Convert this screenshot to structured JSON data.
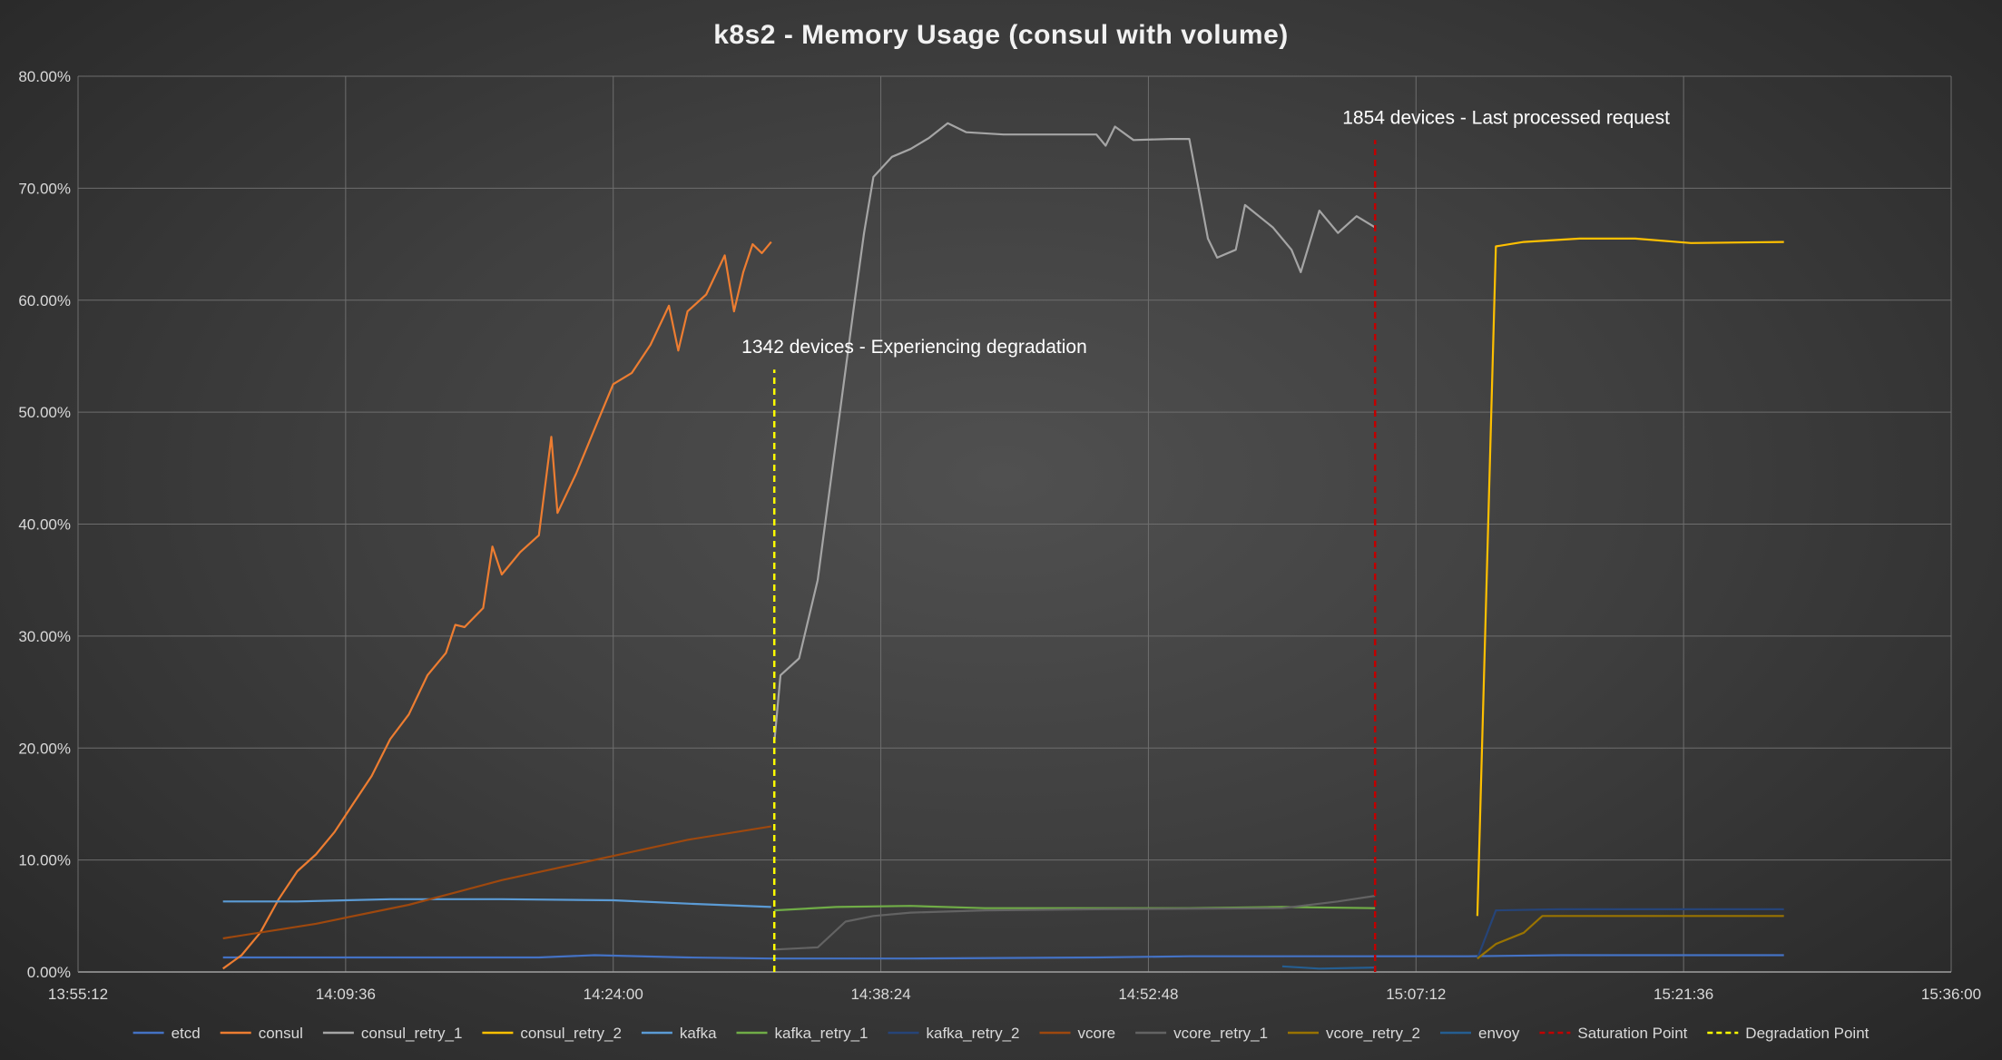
{
  "chart_data": {
    "type": "line",
    "title": "k8s2 - Memory Usage (consul with volume)",
    "xlabel": "",
    "ylabel": "",
    "x_ticks": [
      "13:55:12",
      "14:09:36",
      "14:24:00",
      "14:38:24",
      "14:52:48",
      "15:07:12",
      "15:21:36",
      "15:36:00"
    ],
    "xlim": [
      "13:55:12",
      "15:36:00"
    ],
    "y_ticks": [
      "0.00%",
      "10.00%",
      "20.00%",
      "30.00%",
      "40.00%",
      "50.00%",
      "60.00%",
      "70.00%",
      "80.00%"
    ],
    "ylim": [
      0,
      80
    ],
    "y_unit": "%",
    "grid": true,
    "legend_position": "bottom",
    "series": [
      {
        "name": "etcd",
        "color": "#4472c4",
        "dash": "solid",
        "points": [
          [
            "14:03:00",
            1.3
          ],
          [
            "14:12:00",
            1.3
          ],
          [
            "14:20:00",
            1.3
          ],
          [
            "14:23:00",
            1.5
          ],
          [
            "14:28:00",
            1.3
          ],
          [
            "14:32:30",
            1.2
          ],
          [
            "14:40:00",
            1.2
          ],
          [
            "14:50:00",
            1.3
          ],
          [
            "14:55:00",
            1.4
          ],
          [
            "15:04:00",
            1.4
          ],
          [
            "15:10:00",
            1.4
          ],
          [
            "15:15:00",
            1.5
          ],
          [
            "15:20:00",
            1.5
          ],
          [
            "15:27:00",
            1.5
          ]
        ]
      },
      {
        "name": "consul",
        "color": "#ed7d31",
        "dash": "solid",
        "points": [
          [
            "14:03:00",
            0.3
          ],
          [
            "14:04:00",
            1.5
          ],
          [
            "14:05:00",
            3.5
          ],
          [
            "14:06:00",
            6.5
          ],
          [
            "14:07:00",
            9.0
          ],
          [
            "14:08:00",
            10.5
          ],
          [
            "14:09:00",
            12.5
          ],
          [
            "14:10:00",
            15.0
          ],
          [
            "14:11:00",
            17.5
          ],
          [
            "14:12:00",
            20.8
          ],
          [
            "14:13:00",
            23.0
          ],
          [
            "14:14:00",
            26.5
          ],
          [
            "14:15:00",
            28.5
          ],
          [
            "14:15:30",
            31.0
          ],
          [
            "14:16:00",
            30.8
          ],
          [
            "14:17:00",
            32.5
          ],
          [
            "14:17:30",
            38.0
          ],
          [
            "14:18:00",
            35.5
          ],
          [
            "14:19:00",
            37.5
          ],
          [
            "14:20:00",
            39.0
          ],
          [
            "14:20:40",
            47.8
          ],
          [
            "14:21:00",
            41.0
          ],
          [
            "14:22:00",
            44.5
          ],
          [
            "14:23:00",
            48.5
          ],
          [
            "14:24:00",
            52.5
          ],
          [
            "14:25:00",
            53.5
          ],
          [
            "14:26:00",
            56.0
          ],
          [
            "14:27:00",
            59.5
          ],
          [
            "14:27:30",
            55.5
          ],
          [
            "14:28:00",
            59.0
          ],
          [
            "14:29:00",
            60.5
          ],
          [
            "14:30:00",
            64.0
          ],
          [
            "14:30:30",
            59.0
          ],
          [
            "14:31:00",
            62.5
          ],
          [
            "14:31:30",
            65.0
          ],
          [
            "14:32:00",
            64.2
          ],
          [
            "14:32:30",
            65.2
          ]
        ]
      },
      {
        "name": "consul_retry_1",
        "color": "#a5a5a5",
        "dash": "solid",
        "points": [
          [
            "14:32:40",
            20.5
          ],
          [
            "14:33:00",
            26.5
          ],
          [
            "14:34:00",
            28.0
          ],
          [
            "14:35:00",
            35.0
          ],
          [
            "14:36:00",
            47.5
          ],
          [
            "14:37:00",
            60.0
          ],
          [
            "14:37:30",
            66.0
          ],
          [
            "14:38:00",
            71.0
          ],
          [
            "14:39:00",
            72.8
          ],
          [
            "14:40:00",
            73.5
          ],
          [
            "14:41:00",
            74.5
          ],
          [
            "14:42:00",
            75.8
          ],
          [
            "14:43:00",
            75.0
          ],
          [
            "14:45:00",
            74.8
          ],
          [
            "14:48:00",
            74.8
          ],
          [
            "14:50:00",
            74.8
          ],
          [
            "14:50:30",
            73.8
          ],
          [
            "14:51:00",
            75.5
          ],
          [
            "14:52:00",
            74.3
          ],
          [
            "14:54:00",
            74.4
          ],
          [
            "14:55:00",
            74.4
          ],
          [
            "14:56:00",
            65.5
          ],
          [
            "14:56:30",
            63.8
          ],
          [
            "14:57:30",
            64.5
          ],
          [
            "14:58:00",
            68.5
          ],
          [
            "14:59:30",
            66.5
          ],
          [
            "15:00:30",
            64.5
          ],
          [
            "15:01:00",
            62.5
          ],
          [
            "15:02:00",
            68.0
          ],
          [
            "15:03:00",
            66.0
          ],
          [
            "15:04:00",
            67.5
          ],
          [
            "15:05:00",
            66.5
          ]
        ]
      },
      {
        "name": "consul_retry_2",
        "color": "#ffc000",
        "dash": "solid",
        "points": [
          [
            "15:10:30",
            5.0
          ],
          [
            "15:11:30",
            64.8
          ],
          [
            "15:13:00",
            65.2
          ],
          [
            "15:16:00",
            65.5
          ],
          [
            "15:19:00",
            65.5
          ],
          [
            "15:22:00",
            65.1
          ],
          [
            "15:27:00",
            65.2
          ]
        ]
      },
      {
        "name": "kafka",
        "color": "#5b9bd5",
        "dash": "solid",
        "points": [
          [
            "14:03:00",
            6.3
          ],
          [
            "14:07:00",
            6.3
          ],
          [
            "14:12:00",
            6.5
          ],
          [
            "14:18:00",
            6.5
          ],
          [
            "14:24:00",
            6.4
          ],
          [
            "14:28:00",
            6.1
          ],
          [
            "14:32:30",
            5.8
          ]
        ]
      },
      {
        "name": "kafka_retry_1",
        "color": "#70ad47",
        "dash": "solid",
        "points": [
          [
            "14:32:40",
            5.5
          ],
          [
            "14:36:00",
            5.8
          ],
          [
            "14:40:00",
            5.9
          ],
          [
            "14:44:00",
            5.7
          ],
          [
            "14:50:00",
            5.7
          ],
          [
            "14:55:00",
            5.7
          ],
          [
            "15:00:00",
            5.8
          ],
          [
            "15:05:00",
            5.7
          ]
        ]
      },
      {
        "name": "kafka_retry_2",
        "color": "#264478",
        "dash": "solid",
        "points": [
          [
            "15:10:30",
            1.2
          ],
          [
            "15:11:30",
            5.5
          ],
          [
            "15:15:00",
            5.6
          ],
          [
            "15:20:00",
            5.6
          ],
          [
            "15:27:00",
            5.6
          ]
        ]
      },
      {
        "name": "vcore",
        "color": "#9e480e",
        "dash": "solid",
        "points": [
          [
            "14:03:00",
            3.0
          ],
          [
            "14:08:00",
            4.3
          ],
          [
            "14:13:00",
            6.0
          ],
          [
            "14:18:00",
            8.2
          ],
          [
            "14:23:00",
            10.0
          ],
          [
            "14:28:00",
            11.8
          ],
          [
            "14:32:30",
            13.0
          ]
        ]
      },
      {
        "name": "vcore_retry_1",
        "color": "#636363",
        "dash": "solid",
        "points": [
          [
            "14:32:40",
            2.0
          ],
          [
            "14:35:00",
            2.2
          ],
          [
            "14:36:30",
            4.5
          ],
          [
            "14:38:00",
            5.0
          ],
          [
            "14:40:00",
            5.3
          ],
          [
            "14:44:00",
            5.5
          ],
          [
            "14:50:00",
            5.6
          ],
          [
            "15:00:00",
            5.7
          ],
          [
            "15:03:00",
            6.3
          ],
          [
            "15:05:00",
            6.8
          ]
        ]
      },
      {
        "name": "vcore_retry_2",
        "color": "#997300",
        "dash": "solid",
        "points": [
          [
            "15:10:30",
            1.2
          ],
          [
            "15:11:30",
            2.5
          ],
          [
            "15:13:00",
            3.5
          ],
          [
            "15:14:00",
            5.0
          ],
          [
            "15:18:00",
            5.0
          ],
          [
            "15:27:00",
            5.0
          ]
        ]
      },
      {
        "name": "envoy",
        "color": "#255e91",
        "dash": "solid",
        "points": [
          [
            "15:00:00",
            0.5
          ],
          [
            "15:02:00",
            0.3
          ],
          [
            "15:05:00",
            0.4
          ]
        ]
      },
      {
        "name": "Saturation Point",
        "color": "#c00000",
        "dash": "dashed",
        "points": [
          [
            "15:05:00",
            0
          ],
          [
            "15:05:00",
            74.3
          ]
        ]
      },
      {
        "name": "Degradation Point",
        "color": "#ffff00",
        "dash": "dashed",
        "points": [
          [
            "14:32:40",
            0
          ],
          [
            "14:32:40",
            53.8
          ]
        ]
      }
    ],
    "annotations": [
      {
        "text": "1854 devices - Last processed request",
        "anchor_series": "Saturation Point"
      },
      {
        "text": "1342 devices - Experiencing degradation",
        "anchor_series": "Degradation Point"
      }
    ]
  }
}
